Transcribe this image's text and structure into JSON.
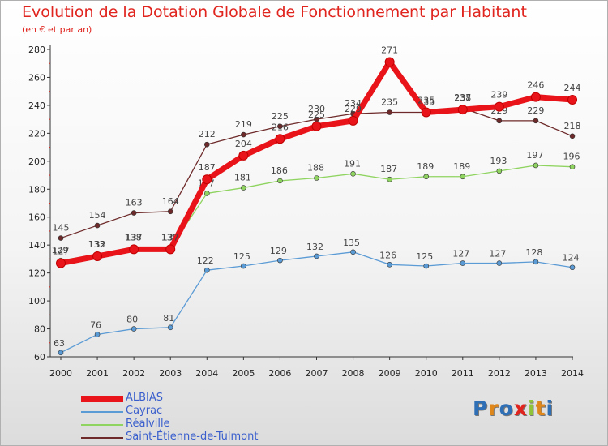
{
  "chart_data": {
    "type": "line",
    "title": "Evolution de la Dotation Globale de Fonctionnement par Habitant",
    "subtitle": "(en € et par an)",
    "xlabel": "",
    "ylabel": "",
    "x": [
      "2000",
      "2001",
      "2002",
      "2003",
      "2004",
      "2005",
      "2006",
      "2007",
      "2008",
      "2009",
      "2010",
      "2011",
      "2012",
      "2013",
      "2014"
    ],
    "yticks": [
      "60",
      "80",
      "100",
      "120",
      "140",
      "160",
      "180",
      "200",
      "220",
      "240",
      "260",
      "280"
    ],
    "ylim": [
      60,
      280
    ],
    "grid": false,
    "legend_position": "bottom-left",
    "series": [
      {
        "name": "ALBIAS",
        "color": "#e8141a",
        "values": [
          127,
          132,
          137,
          137,
          187,
          204,
          216,
          225,
          229,
          271,
          235,
          237,
          239,
          246,
          244
        ]
      },
      {
        "name": "Cayrac",
        "color": "#5b9bd5",
        "values": [
          63,
          76,
          80,
          81,
          122,
          125,
          129,
          132,
          135,
          126,
          125,
          127,
          127,
          128,
          124
        ]
      },
      {
        "name": "Réalville",
        "color": "#8fd460",
        "values": [
          129,
          133,
          138,
          138,
          177,
          181,
          186,
          188,
          191,
          187,
          189,
          189,
          193,
          197,
          196
        ]
      },
      {
        "name": "Saint-Étienne-de-Tulmont",
        "color": "#6e2a2a",
        "values": [
          145,
          154,
          163,
          164,
          212,
          219,
          225,
          230,
          234,
          235,
          235,
          238,
          229,
          229,
          218
        ]
      }
    ]
  },
  "logo": {
    "letters": [
      "P",
      "r",
      "o",
      "x",
      "i",
      "t",
      "i"
    ],
    "colors": [
      "#2f6fb5",
      "#e0871c",
      "#2f6fb5",
      "#e0241e",
      "#8fc43a",
      "#e0871c",
      "#2f6fb5"
    ]
  }
}
